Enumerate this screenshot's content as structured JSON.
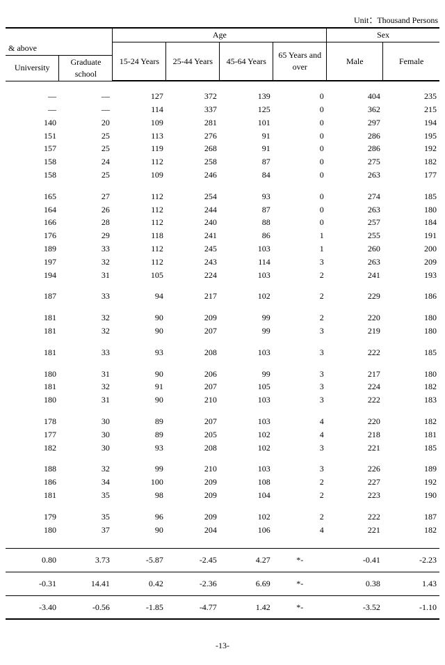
{
  "unit_label": "Unit：Thousand Persons",
  "header": {
    "age": "Age",
    "sex": "Sex",
    "above": "& above",
    "university": "University",
    "graduate": "Graduate school",
    "age_cols": [
      "15-24 Years",
      "25-44 Years",
      "45-64 Years",
      "65 Years and over"
    ],
    "sex_cols": [
      "Male",
      "Female"
    ]
  },
  "groups": [
    {
      "rows": [
        [
          "—",
          "—",
          "127",
          "372",
          "139",
          "0",
          "404",
          "235"
        ],
        [
          "—",
          "—",
          "114",
          "337",
          "125",
          "0",
          "362",
          "215"
        ],
        [
          "140",
          "20",
          "109",
          "281",
          "101",
          "0",
          "297",
          "194"
        ],
        [
          "151",
          "25",
          "113",
          "276",
          "91",
          "0",
          "286",
          "195"
        ],
        [
          "157",
          "25",
          "119",
          "268",
          "91",
          "0",
          "286",
          "192"
        ],
        [
          "158",
          "24",
          "112",
          "258",
          "87",
          "0",
          "275",
          "182"
        ],
        [
          "158",
          "25",
          "109",
          "246",
          "84",
          "0",
          "263",
          "177"
        ]
      ]
    },
    {
      "rows": [
        [
          "165",
          "27",
          "112",
          "254",
          "93",
          "0",
          "274",
          "185"
        ],
        [
          "164",
          "26",
          "112",
          "244",
          "87",
          "0",
          "263",
          "180"
        ],
        [
          "166",
          "28",
          "112",
          "240",
          "88",
          "0",
          "257",
          "184"
        ],
        [
          "176",
          "29",
          "118",
          "241",
          "86",
          "1",
          "255",
          "191"
        ],
        [
          "189",
          "33",
          "112",
          "245",
          "103",
          "1",
          "260",
          "200"
        ],
        [
          "197",
          "32",
          "112",
          "243",
          "114",
          "3",
          "263",
          "209"
        ],
        [
          "194",
          "31",
          "105",
          "224",
          "103",
          "2",
          "241",
          "193"
        ]
      ]
    },
    {
      "rows": [
        [
          "187",
          "33",
          "94",
          "217",
          "102",
          "2",
          "229",
          "186"
        ]
      ]
    },
    {
      "rows": [
        [
          "181",
          "32",
          "90",
          "209",
          "99",
          "2",
          "220",
          "180"
        ],
        [
          "181",
          "32",
          "90",
          "207",
          "99",
          "3",
          "219",
          "180"
        ]
      ]
    },
    {
      "rows": [
        [
          "181",
          "33",
          "93",
          "208",
          "103",
          "3",
          "222",
          "185"
        ]
      ]
    },
    {
      "rows": [
        [
          "180",
          "31",
          "90",
          "206",
          "99",
          "3",
          "217",
          "180"
        ],
        [
          "181",
          "32",
          "91",
          "207",
          "105",
          "3",
          "224",
          "182"
        ],
        [
          "180",
          "31",
          "90",
          "210",
          "103",
          "3",
          "222",
          "183"
        ]
      ]
    },
    {
      "rows": [
        [
          "178",
          "30",
          "89",
          "207",
          "103",
          "4",
          "220",
          "182"
        ],
        [
          "177",
          "30",
          "89",
          "205",
          "102",
          "4",
          "218",
          "181"
        ],
        [
          "182",
          "30",
          "93",
          "208",
          "102",
          "3",
          "221",
          "185"
        ]
      ]
    },
    {
      "rows": [
        [
          "188",
          "32",
          "99",
          "210",
          "103",
          "3",
          "226",
          "189"
        ],
        [
          "186",
          "34",
          "100",
          "209",
          "108",
          "2",
          "227",
          "192"
        ],
        [
          "181",
          "35",
          "98",
          "209",
          "104",
          "2",
          "223",
          "190"
        ]
      ]
    },
    {
      "rows": [
        [
          "179",
          "35",
          "96",
          "209",
          "102",
          "2",
          "222",
          "187"
        ],
        [
          "180",
          "37",
          "90",
          "204",
          "106",
          "4",
          "221",
          "182"
        ]
      ]
    }
  ],
  "stats": [
    [
      "0.80",
      "3.73",
      "-5.87",
      "-2.45",
      "4.27",
      "*-",
      "-0.41",
      "-2.23"
    ],
    [
      "-0.31",
      "14.41",
      "0.42",
      "-2.36",
      "6.69",
      "*-",
      "0.38",
      "1.43"
    ],
    [
      "-3.40",
      "-0.56",
      "-1.85",
      "-4.77",
      "1.42",
      "*-",
      "-3.52",
      "-1.10"
    ]
  ],
  "page_number": "-13-"
}
